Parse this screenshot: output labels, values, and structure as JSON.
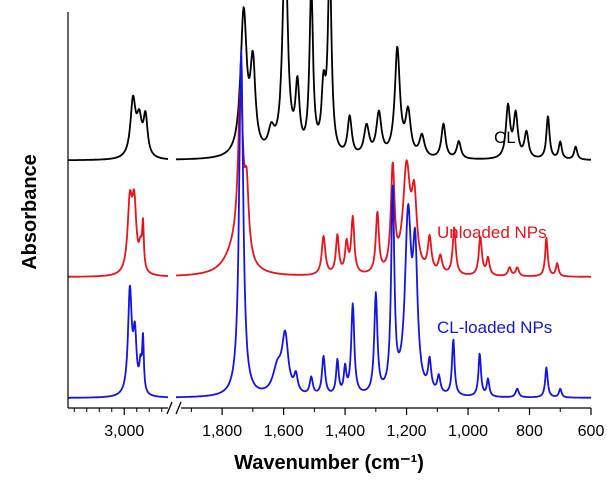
{
  "chart_data": {
    "type": "line",
    "title": "",
    "xlabel": "Wavenumber (cm⁻¹)",
    "ylabel": "Absorbance",
    "x_reversed": true,
    "x_axis_break": true,
    "x_segments": [
      {
        "range": [
          3450,
          2650
        ],
        "ticks": [
          {
            "value": 3000,
            "label": "3,000"
          }
        ]
      },
      {
        "range": [
          1950,
          600
        ],
        "ticks": [
          {
            "value": 1800,
            "label": "1,800"
          },
          {
            "value": 1600,
            "label": "1,600"
          },
          {
            "value": 1400,
            "label": "1,400"
          },
          {
            "value": 1200,
            "label": "1,200"
          },
          {
            "value": 1000,
            "label": "1,000"
          },
          {
            "value": 800,
            "label": "800"
          },
          {
            "value": 600,
            "label": "600"
          }
        ]
      }
    ],
    "y_ticks_shown": false,
    "grid": false,
    "series": [
      {
        "name": "CL",
        "color": "#000000",
        "offset": 0.55,
        "peaks": [
          {
            "x": 2930,
            "height": 0.13,
            "width": 25
          },
          {
            "x": 2880,
            "height": 0.08,
            "width": 25
          },
          {
            "x": 2830,
            "height": 0.09,
            "width": 20
          },
          {
            "x": 1730,
            "height": 0.33,
            "width": 12
          },
          {
            "x": 1700,
            "height": 0.2,
            "width": 10
          },
          {
            "x": 1640,
            "height": 0.05,
            "width": 12
          },
          {
            "x": 1595,
            "height": 0.5,
            "width": 10
          },
          {
            "x": 1555,
            "height": 0.15,
            "width": 8
          },
          {
            "x": 1510,
            "height": 0.38,
            "width": 7
          },
          {
            "x": 1470,
            "height": 0.14,
            "width": 8
          },
          {
            "x": 1450,
            "height": 0.45,
            "width": 7
          },
          {
            "x": 1385,
            "height": 0.09,
            "width": 8
          },
          {
            "x": 1330,
            "height": 0.07,
            "width": 10
          },
          {
            "x": 1290,
            "height": 0.1,
            "width": 10
          },
          {
            "x": 1230,
            "height": 0.25,
            "width": 10
          },
          {
            "x": 1195,
            "height": 0.1,
            "width": 10
          },
          {
            "x": 1150,
            "height": 0.05,
            "width": 10
          },
          {
            "x": 1080,
            "height": 0.08,
            "width": 8
          },
          {
            "x": 1030,
            "height": 0.04,
            "width": 8
          },
          {
            "x": 870,
            "height": 0.12,
            "width": 8
          },
          {
            "x": 845,
            "height": 0.1,
            "width": 8
          },
          {
            "x": 810,
            "height": 0.06,
            "width": 8
          },
          {
            "x": 740,
            "height": 0.1,
            "width": 6
          },
          {
            "x": 700,
            "height": 0.04,
            "width": 6
          },
          {
            "x": 650,
            "height": 0.03,
            "width": 6
          }
        ]
      },
      {
        "name": "Unloaded NPs",
        "color": "#e8141c",
        "offset": 0.28,
        "peaks": [
          {
            "x": 2955,
            "height": 0.16,
            "width": 22
          },
          {
            "x": 2920,
            "height": 0.15,
            "width": 20
          },
          {
            "x": 2870,
            "height": 0.05,
            "width": 15
          },
          {
            "x": 2850,
            "height": 0.1,
            "width": 8
          },
          {
            "x": 1760,
            "height": 0.05,
            "width": 40
          },
          {
            "x": 1740,
            "height": 0.38,
            "width": 10
          },
          {
            "x": 1720,
            "height": 0.15,
            "width": 8
          },
          {
            "x": 1470,
            "height": 0.09,
            "width": 7
          },
          {
            "x": 1425,
            "height": 0.09,
            "width": 6
          },
          {
            "x": 1395,
            "height": 0.07,
            "width": 6
          },
          {
            "x": 1375,
            "height": 0.13,
            "width": 6
          },
          {
            "x": 1295,
            "height": 0.14,
            "width": 6
          },
          {
            "x": 1245,
            "height": 0.24,
            "width": 7
          },
          {
            "x": 1200,
            "height": 0.24,
            "width": 14
          },
          {
            "x": 1175,
            "height": 0.16,
            "width": 10
          },
          {
            "x": 1125,
            "height": 0.08,
            "width": 7
          },
          {
            "x": 1090,
            "height": 0.04,
            "width": 7
          },
          {
            "x": 1045,
            "height": 0.11,
            "width": 6
          },
          {
            "x": 960,
            "height": 0.09,
            "width": 6
          },
          {
            "x": 935,
            "height": 0.04,
            "width": 6
          },
          {
            "x": 865,
            "height": 0.02,
            "width": 6
          },
          {
            "x": 840,
            "height": 0.02,
            "width": 6
          },
          {
            "x": 745,
            "height": 0.09,
            "width": 5
          },
          {
            "x": 710,
            "height": 0.03,
            "width": 5
          }
        ]
      },
      {
        "name": "CL-loaded NPs",
        "color": "#1414e6",
        "offset": 0.0,
        "peaks": [
          {
            "x": 2955,
            "height": 0.24,
            "width": 18
          },
          {
            "x": 2915,
            "height": 0.13,
            "width": 16
          },
          {
            "x": 2870,
            "height": 0.06,
            "width": 12
          },
          {
            "x": 2850,
            "height": 0.12,
            "width": 8
          },
          {
            "x": 1738,
            "height": 0.8,
            "width": 8
          },
          {
            "x": 1620,
            "height": 0.06,
            "width": 18
          },
          {
            "x": 1595,
            "height": 0.13,
            "width": 12
          },
          {
            "x": 1560,
            "height": 0.04,
            "width": 7
          },
          {
            "x": 1510,
            "height": 0.04,
            "width": 6
          },
          {
            "x": 1470,
            "height": 0.09,
            "width": 6
          },
          {
            "x": 1425,
            "height": 0.08,
            "width": 5
          },
          {
            "x": 1400,
            "height": 0.06,
            "width": 5
          },
          {
            "x": 1375,
            "height": 0.21,
            "width": 6
          },
          {
            "x": 1300,
            "height": 0.23,
            "width": 6
          },
          {
            "x": 1245,
            "height": 0.47,
            "width": 6
          },
          {
            "x": 1195,
            "height": 0.4,
            "width": 12
          },
          {
            "x": 1172,
            "height": 0.3,
            "width": 9
          },
          {
            "x": 1125,
            "height": 0.07,
            "width": 6
          },
          {
            "x": 1095,
            "height": 0.04,
            "width": 6
          },
          {
            "x": 1048,
            "height": 0.13,
            "width": 5
          },
          {
            "x": 962,
            "height": 0.1,
            "width": 5
          },
          {
            "x": 935,
            "height": 0.04,
            "width": 5
          },
          {
            "x": 840,
            "height": 0.02,
            "width": 6
          },
          {
            "x": 745,
            "height": 0.07,
            "width": 5
          },
          {
            "x": 700,
            "height": 0.02,
            "width": 5
          }
        ]
      }
    ],
    "series_labels": [
      {
        "text": "CL",
        "color": "#000000"
      },
      {
        "text": "Unloaded NPs",
        "color": "#e8141c"
      },
      {
        "text": "CL-loaded NPs",
        "color": "#1414e6"
      }
    ]
  }
}
